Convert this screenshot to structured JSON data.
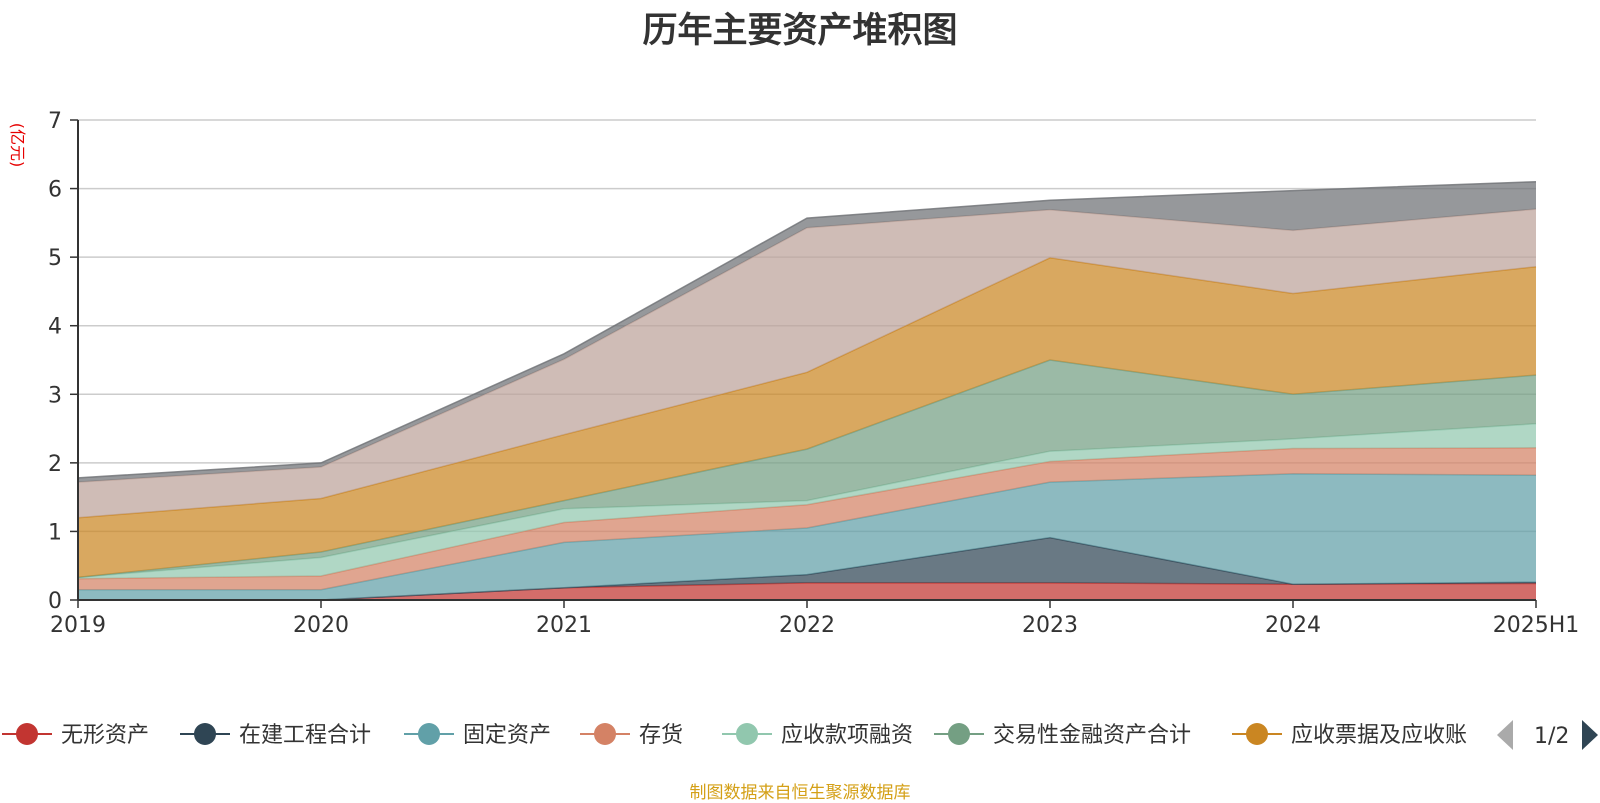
{
  "chart_data": {
    "type": "area",
    "stacked": true,
    "title": "历年主要资产堆积图",
    "unit_label": "(亿元)",
    "categories": [
      "2019",
      "2020",
      "2021",
      "2022",
      "2023",
      "2024",
      "2025H1"
    ],
    "ylim": [
      0,
      7
    ],
    "yticks": [
      0,
      1,
      2,
      3,
      4,
      5,
      6,
      7
    ],
    "grid": true,
    "legend": {
      "placement": "bottom",
      "page": "1/2"
    },
    "series": [
      {
        "name": "无形资产",
        "color": "#c23531",
        "values": [
          0.0,
          0.0,
          0.18,
          0.25,
          0.25,
          0.23,
          0.24
        ]
      },
      {
        "name": "在建工程合计",
        "color": "#2f4554",
        "values": [
          0.0,
          0.0,
          0.0,
          0.12,
          0.66,
          0.0,
          0.02
        ]
      },
      {
        "name": "固定资产",
        "color": "#61a0a8",
        "values": [
          0.15,
          0.15,
          0.66,
          0.68,
          0.81,
          1.61,
          1.56
        ]
      },
      {
        "name": "存货",
        "color": "#d48265",
        "values": [
          0.16,
          0.2,
          0.29,
          0.34,
          0.3,
          0.37,
          0.4
        ]
      },
      {
        "name": "应收款项融资",
        "color": "#91c7ae",
        "values": [
          0.02,
          0.27,
          0.2,
          0.06,
          0.15,
          0.14,
          0.35
        ]
      },
      {
        "name": "交易性金融资产合计",
        "color": "#749f83",
        "values": [
          0.0,
          0.08,
          0.12,
          0.75,
          1.33,
          0.65,
          0.71
        ]
      },
      {
        "name": "应收票据及应收账",
        "color": "#ca8622",
        "values": [
          0.87,
          0.78,
          0.96,
          1.12,
          1.49,
          1.47,
          1.58
        ]
      },
      {
        "name": "",
        "color": "#bda29a",
        "values": [
          0.52,
          0.46,
          1.1,
          2.11,
          0.7,
          0.92,
          0.84
        ]
      },
      {
        "name": "",
        "color": "#6e7074",
        "values": [
          0.06,
          0.06,
          0.08,
          0.14,
          0.14,
          0.58,
          0.4
        ]
      }
    ]
  },
  "source_note": "制图数据来自恒生聚源数据库"
}
